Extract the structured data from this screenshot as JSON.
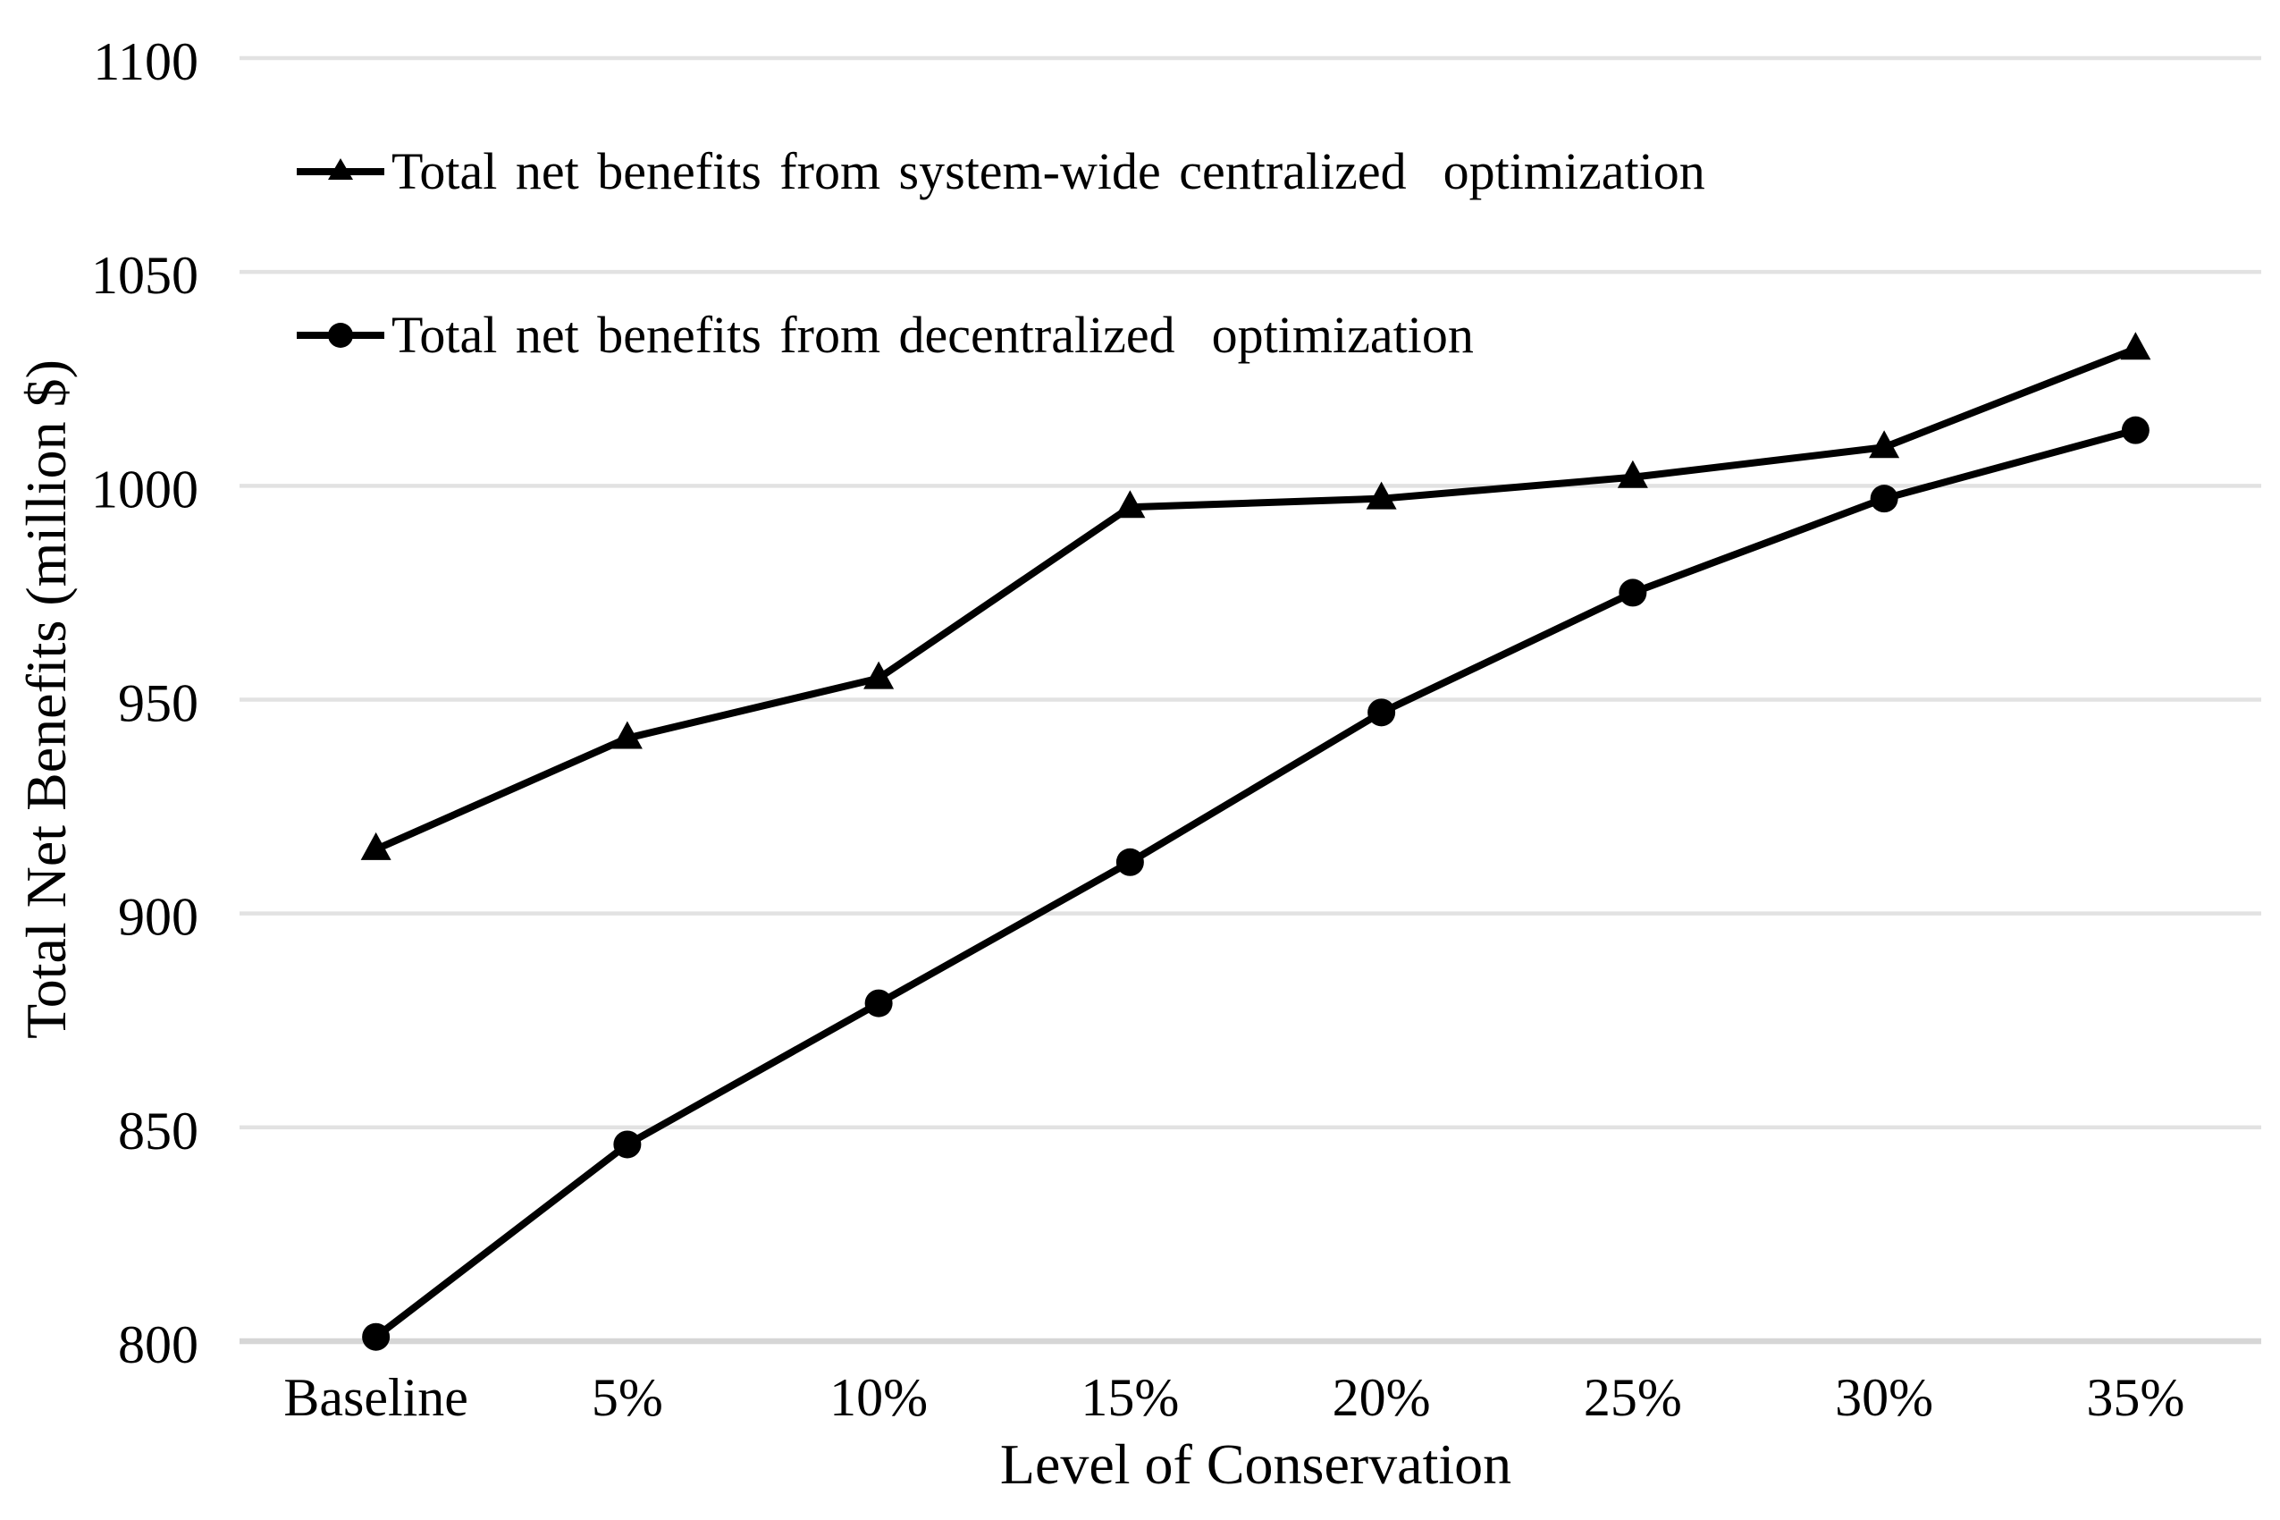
{
  "figure": {
    "background": "#ffffff",
    "text_color": "#000000",
    "gridline_color": "#e2e2e2",
    "axisline_color": "#d6d6d6",
    "series_color": "#000000"
  },
  "chart_data": {
    "type": "line",
    "title": "",
    "categories": [
      "Baseline",
      "5%",
      "10%",
      "15%",
      "20%",
      "25%",
      "30%",
      "35%"
    ],
    "series": [
      {
        "name": "Total net benefits from system-wide centralized  optimization",
        "marker": "triangle",
        "values": [
          915,
          941,
          955,
          995,
          997,
          1002,
          1009,
          1032
        ]
      },
      {
        "name": "Total net benefits from decentralized  optimization",
        "marker": "circle",
        "values": [
          801,
          846,
          879,
          912,
          947,
          975,
          997,
          1013
        ]
      }
    ],
    "xlabel": "Level of Conservation",
    "ylabel": "Total Net Benefits (million $)",
    "ylim": [
      800,
      1100
    ],
    "y_ticks": [
      800,
      850,
      900,
      950,
      1000,
      1050,
      1100
    ],
    "grid": true,
    "legend_position": "top-left-inside"
  }
}
